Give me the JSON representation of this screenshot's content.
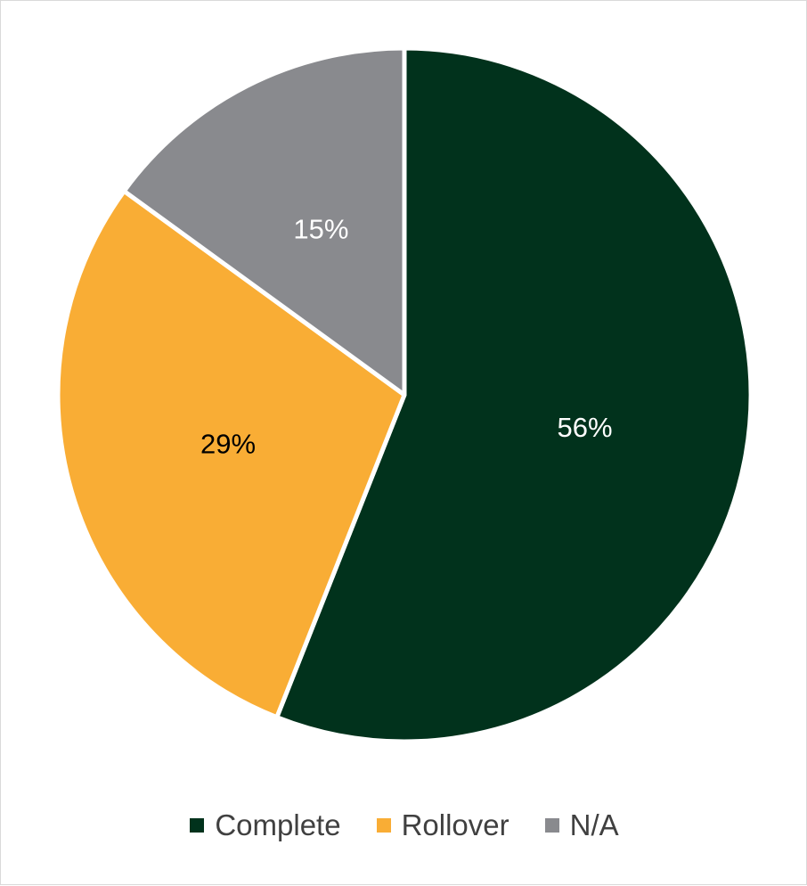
{
  "chart_data": {
    "type": "pie",
    "categories": [
      "Complete",
      "Rollover",
      "N/A"
    ],
    "values": [
      56,
      29,
      15
    ],
    "labels": [
      "56%",
      "29%",
      "15%"
    ],
    "colors": [
      "#01321c",
      "#f9ad35",
      "#898a8e"
    ],
    "label_colors": [
      "#ffffff",
      "#000000",
      "#ffffff"
    ],
    "start_angle_deg": 0,
    "direction": "clockwise",
    "legend_position": "bottom"
  }
}
